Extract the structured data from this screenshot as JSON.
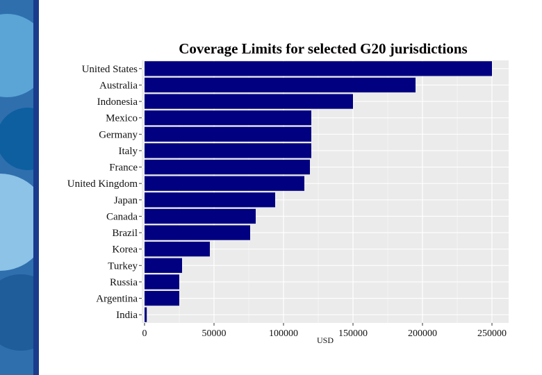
{
  "slide": {
    "band_colors": [
      "#1a3c8c",
      "#2a7ab8",
      "#5aa5d6",
      "#0e5fa0",
      "#8cc3e6"
    ]
  },
  "chart_data": {
    "type": "bar",
    "orientation": "horizontal",
    "title": "Coverage Limits for selected G20 jurisdictions",
    "xlabel": "USD",
    "ylabel": "",
    "categories": [
      "United States",
      "Australia",
      "Indonesia",
      "Mexico",
      "Germany",
      "Italy",
      "France",
      "United Kingdom",
      "Japan",
      "Canada",
      "Brazil",
      "Korea",
      "Turkey",
      "Russia",
      "Argentina",
      "India"
    ],
    "values": [
      250000,
      195000,
      150000,
      120000,
      120000,
      120000,
      119000,
      115000,
      94000,
      80000,
      76000,
      47000,
      27000,
      25000,
      25000,
      1600
    ],
    "xlim": [
      -2000,
      262000
    ],
    "xticks": [
      0,
      50000,
      100000,
      150000,
      200000,
      250000
    ],
    "xtick_labels": [
      "0",
      "50000",
      "100000",
      "150000",
      "200000",
      "250000"
    ],
    "bar_color": "#000080",
    "panel_color": "#ebebeb",
    "grid": true
  }
}
